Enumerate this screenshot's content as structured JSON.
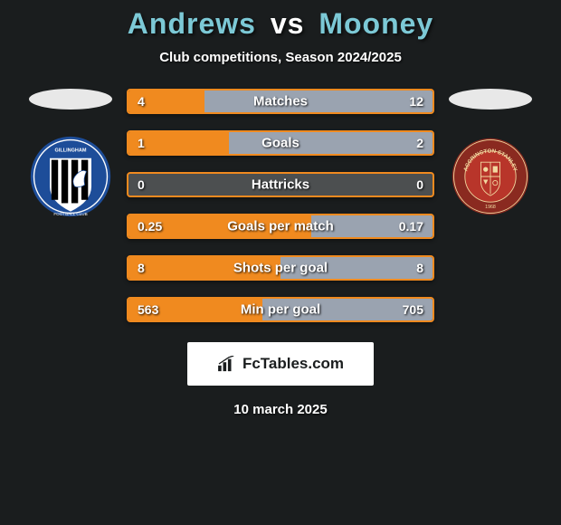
{
  "title": {
    "left": "Andrews",
    "vs": "vs",
    "right": "Mooney"
  },
  "subtitle": "Club competitions, Season 2024/2025",
  "colors": {
    "left_accent": "#f08a1f",
    "right_accent": "#9aa3b0",
    "bar_bg": "#4c4f50",
    "ellipse_left": "#e8e8e8",
    "ellipse_right": "#e8e8e8"
  },
  "badges": {
    "left": {
      "name": "gillingham-badge",
      "outer": "#1d4d99",
      "stripes": [
        "#000000",
        "#ffffff"
      ],
      "text_color": "#ffffff"
    },
    "right": {
      "name": "accrington-badge",
      "outer": "#8a2a20",
      "inner": "#b8352a",
      "ring_text_color": "#f2d9a0"
    }
  },
  "bars": [
    {
      "label": "Matches",
      "left": "4",
      "right": "12",
      "left_pct": 25,
      "right_pct": 75
    },
    {
      "label": "Goals",
      "left": "1",
      "right": "2",
      "left_pct": 33,
      "right_pct": 67
    },
    {
      "label": "Hattricks",
      "left": "0",
      "right": "0",
      "left_pct": 0,
      "right_pct": 0
    },
    {
      "label": "Goals per match",
      "left": "0.25",
      "right": "0.17",
      "left_pct": 60,
      "right_pct": 40
    },
    {
      "label": "Shots per goal",
      "left": "8",
      "right": "8",
      "left_pct": 50,
      "right_pct": 50
    },
    {
      "label": "Min per goal",
      "left": "563",
      "right": "705",
      "left_pct": 44,
      "right_pct": 56
    }
  ],
  "brand": {
    "text": "FcTables.com"
  },
  "date": "10 march 2025"
}
